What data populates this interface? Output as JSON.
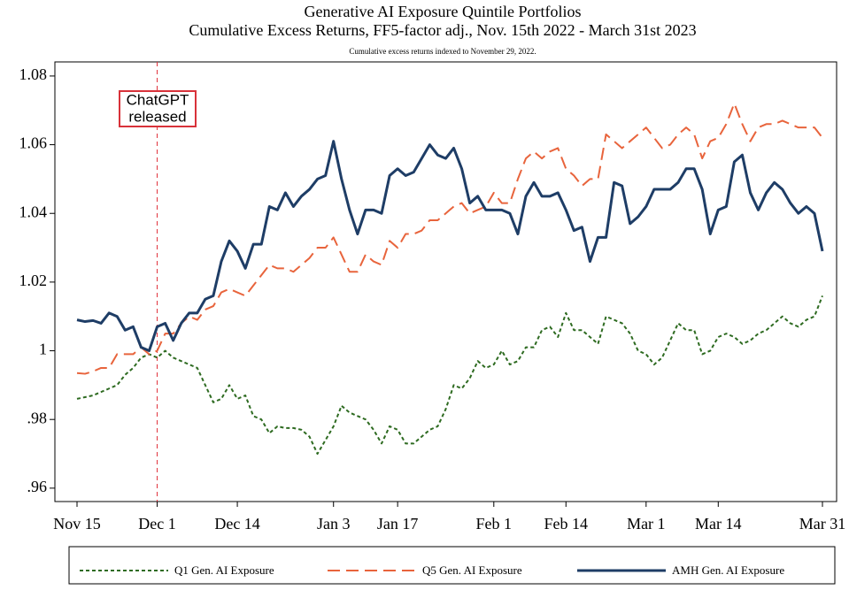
{
  "chart_data": {
    "type": "line",
    "title": "Generative AI Exposure Quintile Portfolios",
    "subtitle": "Cumulative Excess Returns, FF5-factor adj., Nov. 15th 2022 - March 31st 2023",
    "note": "Cumulative excess returns indexed to November 29, 2022.",
    "annotation": [
      "ChatGPT",
      "released"
    ],
    "categories": [
      "Nov 15",
      null,
      null,
      null,
      null,
      null,
      null,
      null,
      null,
      null,
      "Dec 1",
      null,
      null,
      null,
      null,
      null,
      null,
      null,
      null,
      null,
      "Dec 14",
      null,
      null,
      null,
      null,
      null,
      null,
      null,
      null,
      null,
      null,
      null,
      "Jan 3",
      null,
      null,
      null,
      null,
      null,
      null,
      null,
      "Jan 17",
      null,
      null,
      null,
      null,
      null,
      null,
      null,
      null,
      null,
      null,
      null,
      "Feb 1",
      null,
      null,
      null,
      null,
      null,
      null,
      null,
      null,
      "Feb 14",
      null,
      null,
      null,
      null,
      null,
      null,
      null,
      null,
      null,
      "Mar 1",
      null,
      null,
      null,
      null,
      null,
      null,
      null,
      null,
      "Mar 14",
      null,
      null,
      null,
      null,
      null,
      null,
      null,
      null,
      null,
      null,
      null,
      null,
      "Mar 31"
    ],
    "series": [
      {
        "name": "Q1 Gen. AI Exposure",
        "color": "#2e6b21",
        "dash": "4,3",
        "width": 2,
        "values": [
          0.986,
          0.9865,
          0.987,
          0.988,
          0.989,
          0.99,
          0.993,
          0.995,
          0.998,
          0.999,
          0.998,
          1.0,
          0.998,
          0.997,
          0.996,
          0.995,
          0.99,
          0.985,
          0.986,
          0.99,
          0.986,
          0.987,
          0.981,
          0.98,
          0.976,
          0.978,
          0.9775,
          0.9775,
          0.977,
          0.975,
          0.97,
          0.974,
          0.978,
          0.984,
          0.982,
          0.981,
          0.98,
          0.977,
          0.973,
          0.978,
          0.977,
          0.973,
          0.973,
          0.975,
          0.977,
          0.978,
          0.983,
          0.99,
          0.989,
          0.992,
          0.997,
          0.995,
          0.996,
          1.0,
          0.996,
          0.997,
          1.001,
          1.001,
          1.006,
          1.007,
          1.004,
          1.011,
          1.006,
          1.006,
          1.004,
          1.002,
          1.01,
          1.009,
          1.008,
          1.005,
          1.0,
          0.999,
          0.996,
          0.998,
          1.003,
          1.008,
          1.006,
          1.006,
          0.999,
          1.0,
          1.004,
          1.005,
          1.004,
          1.002,
          1.003,
          1.005,
          1.006,
          1.008,
          1.01,
          1.008,
          1.007,
          1.009,
          1.01,
          1.016
        ]
      },
      {
        "name": "Q5 Gen. AI Exposure",
        "color": "#e8643c",
        "dash": "14,7",
        "width": 2,
        "values": [
          0.9935,
          0.9933,
          0.994,
          0.995,
          0.995,
          0.999,
          0.999,
          0.999,
          1.001,
          0.999,
          1.0,
          1.005,
          1.005,
          1.008,
          1.01,
          1.009,
          1.012,
          1.013,
          1.017,
          1.018,
          1.017,
          1.016,
          1.019,
          1.022,
          1.025,
          1.024,
          1.024,
          1.023,
          1.025,
          1.027,
          1.03,
          1.03,
          1.033,
          1.028,
          1.023,
          1.023,
          1.028,
          1.026,
          1.025,
          1.032,
          1.03,
          1.034,
          1.034,
          1.035,
          1.038,
          1.038,
          1.04,
          1.042,
          1.043,
          1.04,
          1.041,
          1.042,
          1.046,
          1.043,
          1.043,
          1.05,
          1.056,
          1.058,
          1.056,
          1.058,
          1.059,
          1.053,
          1.051,
          1.048,
          1.05,
          1.05,
          1.063,
          1.061,
          1.059,
          1.061,
          1.063,
          1.065,
          1.062,
          1.059,
          1.06,
          1.063,
          1.065,
          1.063,
          1.056,
          1.061,
          1.062,
          1.066,
          1.072,
          1.066,
          1.061,
          1.065,
          1.066,
          1.066,
          1.067,
          1.066,
          1.065,
          1.065,
          1.065,
          1.062
        ]
      },
      {
        "name": "AMH Gen. AI Exposure",
        "color": "#1e3d66",
        "dash": "none",
        "width": 3,
        "values": [
          1.009,
          1.0085,
          1.0088,
          1.008,
          1.011,
          1.01,
          1.006,
          1.007,
          1.001,
          1.0,
          1.007,
          1.008,
          1.003,
          1.008,
          1.011,
          1.011,
          1.015,
          1.016,
          1.026,
          1.032,
          1.029,
          1.024,
          1.031,
          1.031,
          1.042,
          1.041,
          1.046,
          1.042,
          1.045,
          1.047,
          1.05,
          1.051,
          1.061,
          1.05,
          1.041,
          1.034,
          1.041,
          1.041,
          1.04,
          1.051,
          1.053,
          1.051,
          1.052,
          1.056,
          1.06,
          1.057,
          1.056,
          1.059,
          1.053,
          1.043,
          1.045,
          1.041,
          1.041,
          1.041,
          1.04,
          1.034,
          1.045,
          1.049,
          1.045,
          1.045,
          1.046,
          1.041,
          1.035,
          1.036,
          1.026,
          1.033,
          1.033,
          1.049,
          1.048,
          1.037,
          1.039,
          1.042,
          1.047,
          1.047,
          1.047,
          1.049,
          1.053,
          1.053,
          1.047,
          1.034,
          1.041,
          1.042,
          1.055,
          1.057,
          1.046,
          1.041,
          1.046,
          1.049,
          1.047,
          1.043,
          1.04,
          1.042,
          1.04,
          1.029
        ]
      }
    ],
    "ylim": [
      0.9561,
      1.0841
    ],
    "yticks": [
      {
        "value": 0.96,
        "label": ".96"
      },
      {
        "value": 0.98,
        "label": ".98"
      },
      1,
      1.02,
      1.04,
      1.06,
      1.08
    ],
    "grid": false,
    "legend": "bottom"
  }
}
